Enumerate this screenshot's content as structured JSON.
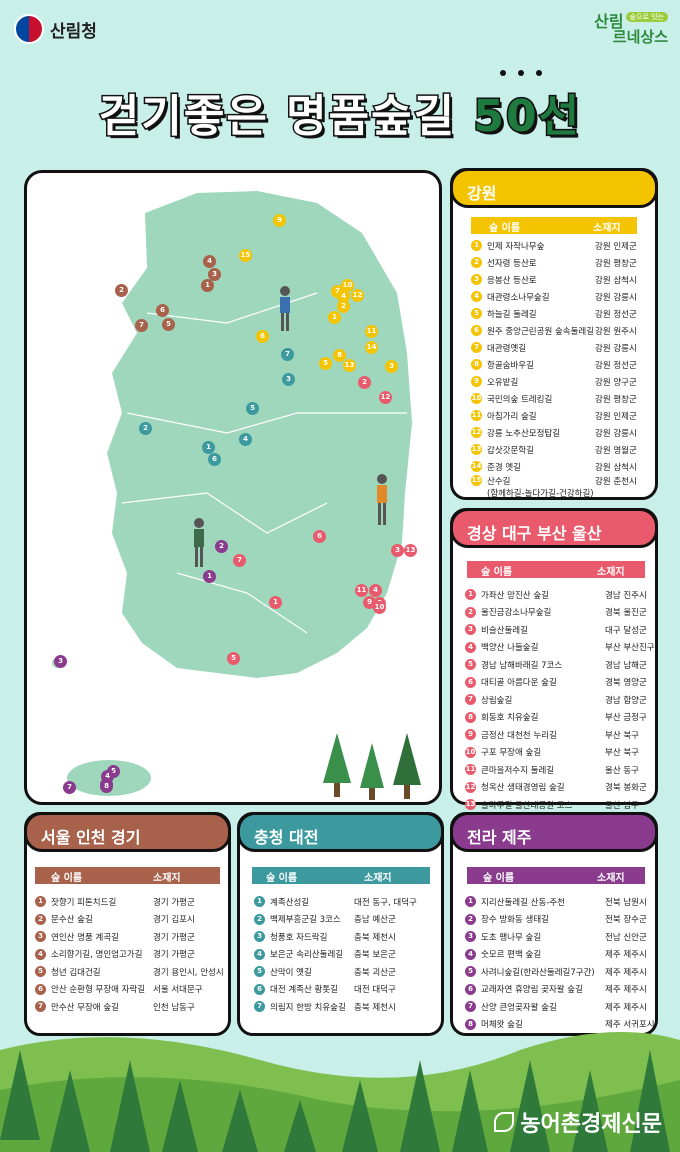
{
  "header": {
    "gov_name": "산림청",
    "brand_line1": "산림",
    "brand_tag": "숲으로 잇는",
    "brand_line2": "르네상스"
  },
  "title": {
    "main": "걷기좋은 명품숲길 ",
    "highlight": "50선"
  },
  "colors": {
    "gangwon": "#f5c400",
    "gyeongsang": "#e95b6c",
    "seoul": "#a8614a",
    "chungcheong": "#3c9a9e",
    "jeolla": "#8a3b8e"
  },
  "gangwon": {
    "header": "강원",
    "col_name": "숲 이름",
    "col_loc": "소재지",
    "items": [
      {
        "n": "1",
        "name": "인제 자작나무숲",
        "loc": "강원 인제군"
      },
      {
        "n": "2",
        "name": "선자령 등산로",
        "loc": "강원 평창군"
      },
      {
        "n": "3",
        "name": "응봉산 등산로",
        "loc": "강원 삼척시"
      },
      {
        "n": "4",
        "name": "대관령소나무숲길",
        "loc": "강원 강릉시"
      },
      {
        "n": "5",
        "name": "하늘길 둘레길",
        "loc": "강원 정선군"
      },
      {
        "n": "6",
        "name": "원주 중앙근린공원 숲속둘레길",
        "loc": "강원 원주시"
      },
      {
        "n": "7",
        "name": "대관령옛길",
        "loc": "강원 강릉시"
      },
      {
        "n": "8",
        "name": "항골숨바우길",
        "loc": "강원 정선군"
      },
      {
        "n": "9",
        "name": "오유밭길",
        "loc": "강원 양구군"
      },
      {
        "n": "10",
        "name": "국민의숲 트레킹길",
        "loc": "강원 평창군"
      },
      {
        "n": "11",
        "name": "아침가리 숲길",
        "loc": "강원 인제군"
      },
      {
        "n": "12",
        "name": "강릉 노추산모정탑길",
        "loc": "강원 강릉시"
      },
      {
        "n": "13",
        "name": "갑삿갓문학길",
        "loc": "강원 영월군"
      },
      {
        "n": "14",
        "name": "준경 옛길",
        "loc": "강원 삼척시"
      },
      {
        "n": "15",
        "name": "산수길",
        "name2": "(함께하길-놀다가길-건강하길)",
        "loc": "강원 춘천시"
      }
    ]
  },
  "gyeongsang": {
    "header": "경상 대구 부산 울산",
    "col_name": "숲 이름",
    "col_loc": "소재지",
    "items": [
      {
        "n": "1",
        "name": "가좌산 망진산 숲길",
        "loc": "경남 진주시"
      },
      {
        "n": "2",
        "name": "울진금강소나무숲길",
        "loc": "경북 울진군"
      },
      {
        "n": "3",
        "name": "비슬산둘레길",
        "loc": "대구 달성군"
      },
      {
        "n": "4",
        "name": "백양산 나들숲길",
        "loc": "부산 부산진구"
      },
      {
        "n": "5",
        "name": "경남 남해바래길 7코스",
        "loc": "경남 남해군"
      },
      {
        "n": "6",
        "name": "대티골 아름다운 숲길",
        "loc": "경북 영양군"
      },
      {
        "n": "7",
        "name": "상림숲길",
        "loc": "경남 함양군"
      },
      {
        "n": "8",
        "name": "회동호 치유숲길",
        "loc": "부산 금정구"
      },
      {
        "n": "9",
        "name": "금정산 대천천 누리길",
        "loc": "부산 북구"
      },
      {
        "n": "10",
        "name": "구포 무장애 숲길",
        "loc": "부산 북구"
      },
      {
        "n": "11",
        "name": "큰마을저수지 둘레길",
        "loc": "울산 동구"
      },
      {
        "n": "12",
        "name": "청옥산 생태경영림 숲길",
        "loc": "경북 봉화군"
      },
      {
        "n": "13",
        "name": "솔마루길 울산대공원 코스",
        "loc": "울산 남구"
      }
    ]
  },
  "seoul": {
    "header": "서울 인천 경기",
    "col_name": "숲 이름",
    "col_loc": "소재지",
    "items": [
      {
        "n": "1",
        "name": "잣향기 피톤치드길",
        "loc": "경기 가평군"
      },
      {
        "n": "2",
        "name": "문수산 숲길",
        "loc": "경기 김포시"
      },
      {
        "n": "3",
        "name": "연인산 명품 계곡길",
        "loc": "경기 가평군"
      },
      {
        "n": "4",
        "name": "소리향기길, 명인엄고가길",
        "loc": "경기 가평군"
      },
      {
        "n": "5",
        "name": "청년 김대건길",
        "loc": "경기 용인시, 안성시"
      },
      {
        "n": "6",
        "name": "안산 순환형 무장애 자락길",
        "loc": "서울 서대문구"
      },
      {
        "n": "7",
        "name": "만수산 무장애 숲길",
        "loc": "인천 남동구"
      }
    ]
  },
  "chungcheong": {
    "header": "충청 대전",
    "col_name": "숲 이름",
    "col_loc": "소재지",
    "items": [
      {
        "n": "1",
        "name": "계족산성길",
        "loc": "대전 동구, 대덕구"
      },
      {
        "n": "2",
        "name": "백제부흥군길 3코스",
        "loc": "충남 예산군"
      },
      {
        "n": "3",
        "name": "청풍호 자드락길",
        "loc": "충북 제천시"
      },
      {
        "n": "4",
        "name": "보은군 속리산둘레길",
        "loc": "충북 보은군"
      },
      {
        "n": "5",
        "name": "산막이 옛길",
        "loc": "충북 괴산군"
      },
      {
        "n": "6",
        "name": "대전 계족산 황톳길",
        "loc": "대전 대덕구"
      },
      {
        "n": "7",
        "name": "의림지 한방 치유숲길",
        "loc": "충북 제천시"
      }
    ]
  },
  "jeolla": {
    "header": "전라 제주",
    "col_name": "숲 이름",
    "col_loc": "소재지",
    "items": [
      {
        "n": "1",
        "name": "지리산둘레길 산동-주천",
        "loc": "전북 남원시"
      },
      {
        "n": "2",
        "name": "장수 방화동 생태길",
        "loc": "전북 장수군"
      },
      {
        "n": "3",
        "name": "도초 팽나무 숲길",
        "loc": "전남 신안군"
      },
      {
        "n": "4",
        "name": "숫모르 편백 숲길",
        "loc": "제주 제주시"
      },
      {
        "n": "5",
        "name": "사려니숲길(한라산둘레길7구간)",
        "loc": "제주 제주시"
      },
      {
        "n": "6",
        "name": "교래자연 휴양림 곶자왈 숲길",
        "loc": "제주 제주시"
      },
      {
        "n": "7",
        "name": "산양 큰엉곶자왈 숲길",
        "loc": "제주 제주시"
      },
      {
        "n": "8",
        "name": "머체왓 숲길",
        "loc": "제주 서귀포시"
      }
    ]
  },
  "map_pins": {
    "gangwon": [
      "9",
      "15",
      "10",
      "7",
      "4",
      "12",
      "2",
      "1",
      "8",
      "11",
      "14",
      "6",
      "5",
      "13",
      "3"
    ],
    "gyeongsang": [
      "2",
      "12",
      "6",
      "3",
      "13",
      "11",
      "4",
      "8",
      "9",
      "10",
      "1",
      "7",
      "5"
    ],
    "seoul": [
      "4",
      "3",
      "1",
      "2",
      "6",
      "7",
      "5"
    ],
    "chungcheong": [
      "7",
      "3",
      "5",
      "4",
      "1",
      "6",
      "2"
    ],
    "jeolla": [
      "2",
      "1",
      "3",
      "5",
      "4",
      "6",
      "8",
      "7"
    ]
  },
  "footer": {
    "source": "농어촌경제신문"
  }
}
